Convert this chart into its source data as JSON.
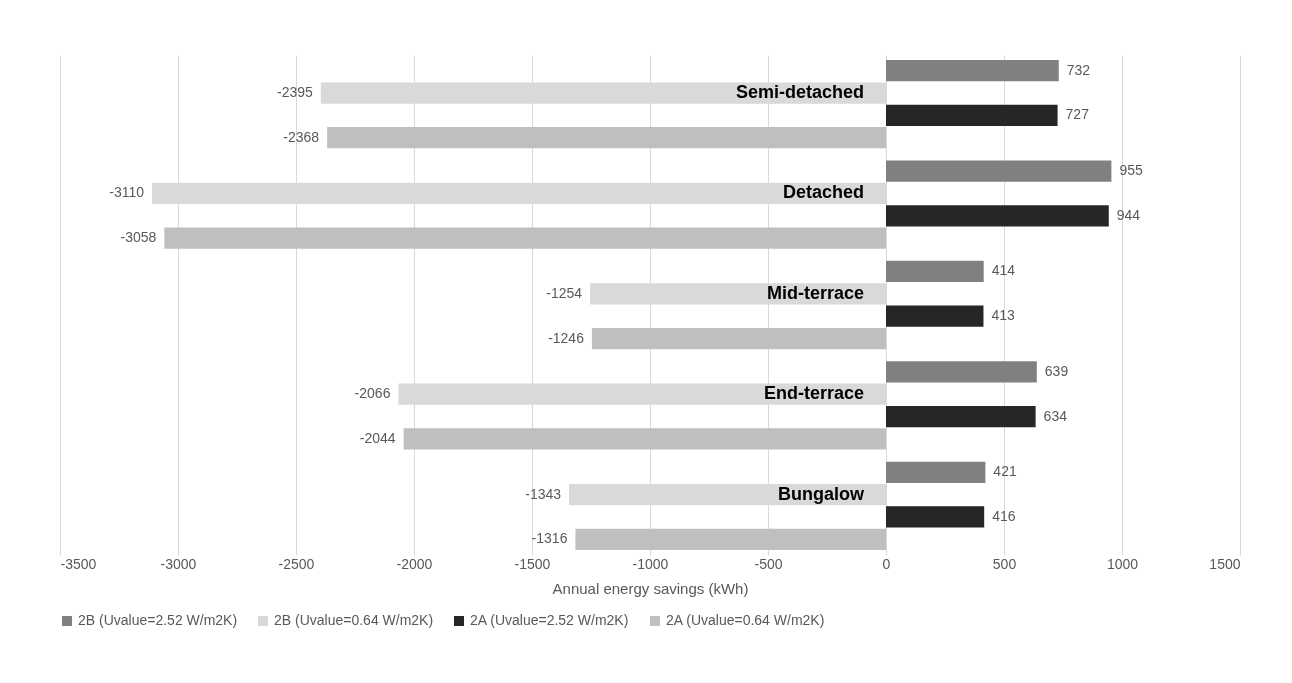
{
  "chart_data": {
    "type": "bar",
    "orientation": "horizontal",
    "xlabel": "Annual energy savings (kWh)",
    "categories": [
      "Semi-detached",
      "Detached",
      "Mid-terrace",
      "End-terrace",
      "Bungalow"
    ],
    "series": [
      {
        "name": "2B (Uvalue=2.52 W/m2K)",
        "color": "#808080",
        "values": [
          732,
          955,
          414,
          639,
          421
        ]
      },
      {
        "name": "2B (Uvalue=0.64 W/m2K)",
        "color": "#d9d9d9",
        "values": [
          -2395,
          -3110,
          -1254,
          -2066,
          -1343
        ]
      },
      {
        "name": "2A (Uvalue=2.52 W/m2K)",
        "color": "#262626",
        "values": [
          727,
          944,
          413,
          634,
          416
        ]
      },
      {
        "name": "2A (Uvalue=0.64 W/m2K)",
        "color": "#bfbfbf",
        "values": [
          -2368,
          -3058,
          -1246,
          -2044,
          -1316
        ]
      }
    ],
    "xlim": [
      -3500,
      1500
    ],
    "xticks": [
      -3500,
      -3000,
      -2500,
      -2000,
      -1500,
      -1000,
      -500,
      0,
      500,
      1000,
      1500
    ],
    "grid": "x",
    "legend": "bottom",
    "data_labels": true
  }
}
